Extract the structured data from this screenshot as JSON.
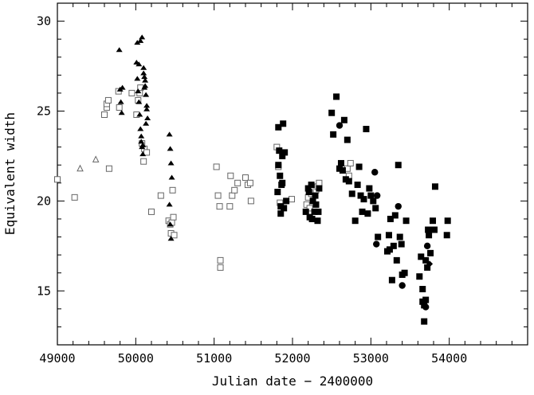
{
  "chart_data": {
    "type": "scatter",
    "title": "",
    "xlabel": "Julian date − 2400000",
    "ylabel": "Equivalent width",
    "xlim": [
      49000,
      55000
    ],
    "ylim": [
      12,
      31
    ],
    "x_ticks": [
      49000,
      50000,
      51000,
      52000,
      53000,
      54000
    ],
    "x_tick_labels": [
      "49000",
      "50000",
      "51000",
      "52000",
      "53000",
      "54000"
    ],
    "y_ticks": [
      15,
      20,
      25,
      30
    ],
    "y_tick_labels": [
      "15",
      "20",
      "25",
      "30"
    ],
    "grid": false,
    "legend": "none",
    "series": [
      {
        "marker": "open-triangle",
        "color": "#666666",
        "x": [
          49290,
          49490
        ],
        "y": [
          21.8,
          22.3
        ]
      },
      {
        "marker": "open-square",
        "color": "#666666",
        "x": [
          49000,
          49220,
          49600,
          49630,
          49630,
          49650,
          49660,
          49780,
          49790,
          49950,
          50010,
          50030,
          50050,
          50060,
          50080,
          50100,
          50110,
          50140,
          50200,
          50320,
          50420,
          50440,
          50450,
          50460,
          50470,
          50480,
          50490,
          51030,
          51050,
          51070,
          51080,
          51080,
          51200,
          51210,
          51230,
          51260,
          51300,
          51400,
          51430,
          51460,
          51470,
          51800,
          51820,
          51840,
          51990,
          52180,
          52200,
          52220,
          52240,
          52300,
          52320,
          52340,
          52700,
          52720,
          52740
        ],
        "y": [
          21.2,
          20.2,
          24.8,
          25.2,
          25.4,
          25.6,
          21.8,
          26.1,
          25.2,
          26.0,
          24.8,
          25.6,
          26.0,
          26.3,
          23.2,
          22.2,
          22.9,
          22.7,
          19.4,
          20.3,
          18.9,
          18.7,
          18.2,
          18.8,
          20.6,
          19.1,
          18.1,
          21.9,
          20.3,
          19.7,
          16.7,
          16.3,
          19.7,
          21.4,
          20.3,
          20.6,
          21.0,
          21.3,
          20.9,
          21.0,
          20.0,
          23.0,
          21.9,
          19.9,
          20.1,
          19.8,
          20.2,
          19.6,
          20.4,
          20.6,
          20.8,
          21.0,
          21.8,
          21.4,
          22.1
        ]
      },
      {
        "marker": "filled-triangle",
        "color": "#000000",
        "x": [
          49790,
          49800,
          49810,
          49820,
          49830,
          50010,
          50020,
          50030,
          50040,
          50050,
          50060,
          50070,
          50080,
          50090,
          50100,
          50110,
          50120,
          50130,
          50140,
          50150,
          50020,
          50040,
          50060,
          50080,
          50100,
          50120,
          50140,
          50070,
          50090,
          50110,
          50130,
          50430,
          50440,
          50450,
          50460,
          50430,
          50440,
          50450
        ],
        "y": [
          28.4,
          26.2,
          25.5,
          24.9,
          26.3,
          27.7,
          26.8,
          26.1,
          25.5,
          24.8,
          24.0,
          23.3,
          23.0,
          22.6,
          27.4,
          26.9,
          26.4,
          25.9,
          25.3,
          24.6,
          28.8,
          27.6,
          28.9,
          29.1,
          27.1,
          26.7,
          25.1,
          23.6,
          23.1,
          26.3,
          24.3,
          23.7,
          22.9,
          22.1,
          21.3,
          19.8,
          18.7,
          17.9
        ]
      },
      {
        "marker": "filled-square",
        "color": "#000000",
        "x": [
          51810,
          51820,
          51830,
          51840,
          51850,
          51860,
          51870,
          51880,
          51890,
          51900,
          51920,
          51820,
          51850,
          51870,
          52170,
          52200,
          52220,
          52240,
          52260,
          52280,
          52300,
          52320,
          52340,
          52210,
          52250,
          52290,
          52330,
          52500,
          52520,
          52560,
          52600,
          52620,
          52640,
          52660,
          52680,
          52700,
          52720,
          52760,
          52800,
          52830,
          52850,
          52870,
          52890,
          52910,
          52940,
          52960,
          52980,
          53000,
          53030,
          53060,
          53090,
          53210,
          53230,
          53250,
          53270,
          53290,
          53310,
          53330,
          53350,
          53370,
          53390,
          53400,
          53430,
          53450,
          53620,
          53640,
          53660,
          53680,
          53700,
          53720,
          53740,
          53760,
          53790,
          53810,
          53680,
          53660,
          53700,
          53730,
          53970,
          53980,
          53820,
          53240
        ],
        "y": [
          20.5,
          22.0,
          22.8,
          21.4,
          19.7,
          20.9,
          22.5,
          24.3,
          19.6,
          22.7,
          20.0,
          24.1,
          19.3,
          21.0,
          19.4,
          20.7,
          19.1,
          20.9,
          20.0,
          19.4,
          19.8,
          18.9,
          20.7,
          20.5,
          19.0,
          20.3,
          19.4,
          24.9,
          23.7,
          25.8,
          21.8,
          22.1,
          21.7,
          24.5,
          21.2,
          23.4,
          21.1,
          20.4,
          18.9,
          20.9,
          21.9,
          20.3,
          19.4,
          20.1,
          24.0,
          19.3,
          20.7,
          20.3,
          20.0,
          19.6,
          18.0,
          17.2,
          18.1,
          19.0,
          15.6,
          17.5,
          19.2,
          16.7,
          22.0,
          18.0,
          17.6,
          15.9,
          16.0,
          18.9,
          15.8,
          16.9,
          14.4,
          14.2,
          14.5,
          16.3,
          18.1,
          17.1,
          18.9,
          18.4,
          13.3,
          15.1,
          16.7,
          18.4,
          18.1,
          18.9,
          20.8,
          17.3
        ]
      },
      {
        "marker": "filled-circle",
        "color": "#000000",
        "x": [
          52600,
          53050,
          53070,
          53080,
          53350,
          53400,
          53700,
          53720
        ],
        "y": [
          24.2,
          21.6,
          17.6,
          20.3,
          19.7,
          15.3,
          14.1,
          17.5
        ]
      },
      {
        "marker": "filled-diamond",
        "color": "#000000",
        "x": [
          53750
        ],
        "y": [
          16.5
        ]
      }
    ]
  }
}
